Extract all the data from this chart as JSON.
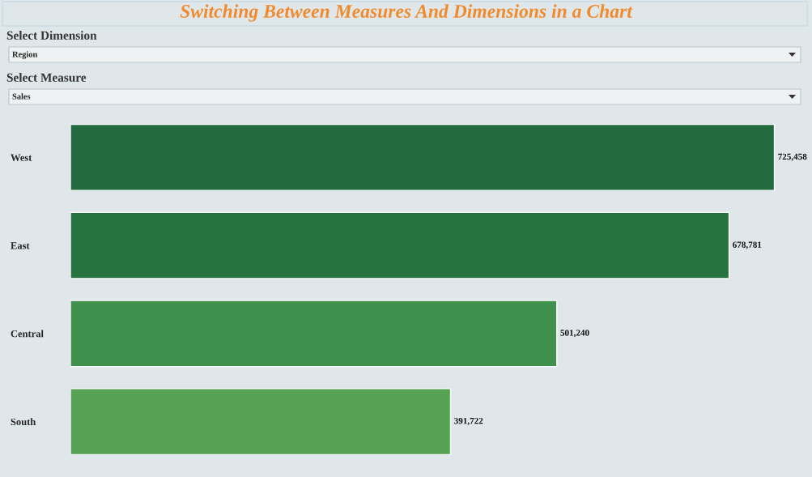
{
  "chart_data": {
    "type": "bar",
    "orientation": "horizontal",
    "title": "Switching Between Measures And Dimensions in a Chart",
    "categories": [
      "West",
      "East",
      "Central",
      "South"
    ],
    "values": [
      725458,
      678781,
      501240,
      391722
    ],
    "colors": [
      "#236b3f",
      "#277340",
      "#3f8f4d",
      "#56a153"
    ],
    "value_labels": [
      "725,458",
      "678,781",
      "501,240",
      "391,722"
    ],
    "annotations": [
      "Select Dimension",
      "Region",
      "Select Measure",
      "Sales"
    ],
    "tick_labels": "y",
    "grid": false,
    "legend": false
  }
}
